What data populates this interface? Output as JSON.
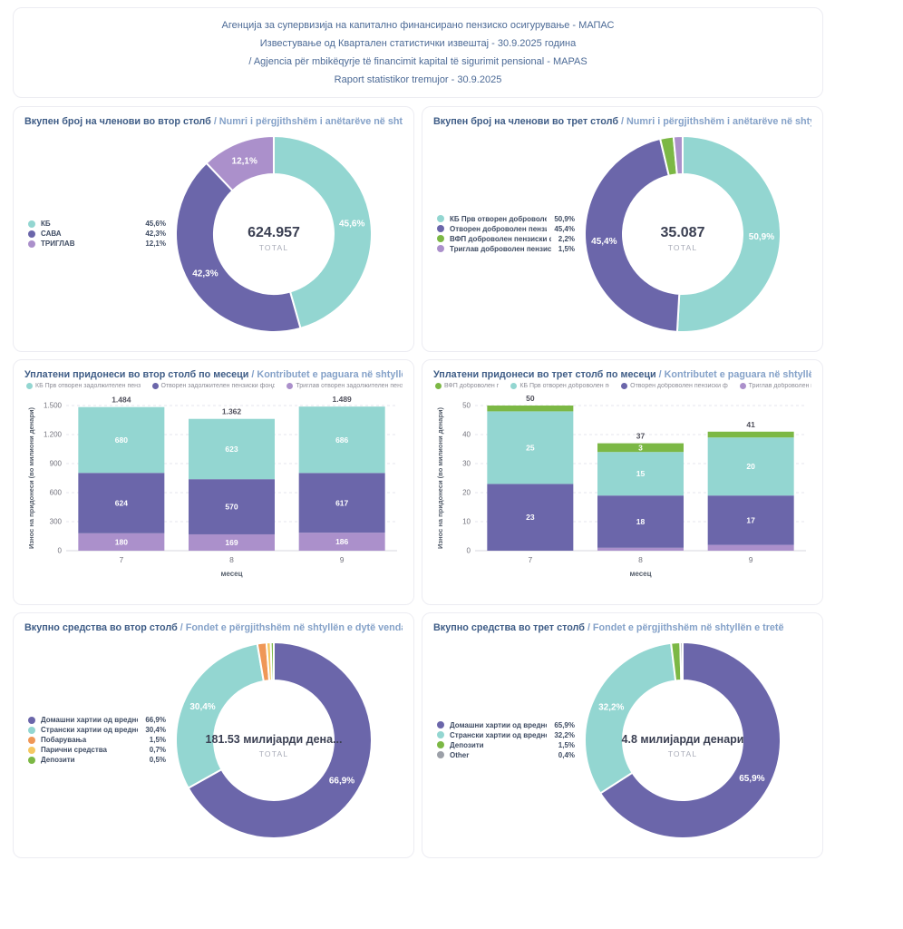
{
  "header": {
    "lines": [
      "Агенција за супервизија на капитално финансирано пензиско осигурување - МАПАС",
      "Известување од Квартален статистички извештај - 30.9.2025 година",
      "/ Agjencia për mbikëqyrje të financimit kapital të sigurimit pensional - MAPAS",
      "Raport statistikor tremujor - 30.9.2025"
    ]
  },
  "colors": {
    "teal": "#93D6D1",
    "purple": "#6B66AA",
    "light_purple": "#AB90CB",
    "green": "#7CB845",
    "orange": "#EF9757",
    "yellow": "#F5C862",
    "gray": "#9CA0A8"
  },
  "chart_data": [
    {
      "id": "members-pillar2",
      "type": "donut",
      "title_mk": "Вкупен број на членови во втор столб",
      "title_sq": "/ Numri i përgjithshëm i anëtarëve në shtyllën e dytë",
      "total": "624.957",
      "total_label": "TOTAL",
      "slices": [
        {
          "name": "КБ",
          "value": 45.6,
          "pct": "45,6%",
          "color": "teal",
          "ring_label": "45,6%"
        },
        {
          "name": "САВА",
          "value": 42.3,
          "pct": "42,3%",
          "color": "purple",
          "ring_label": "42,3%"
        },
        {
          "name": "ТРИГЛАВ",
          "value": 12.1,
          "pct": "12,1%",
          "color": "light_purple",
          "ring_label": "12,1%"
        }
      ]
    },
    {
      "id": "members-pillar3",
      "type": "donut",
      "title_mk": "Вкупен број на членови во трет столб",
      "title_sq": "/ Numri i përgjithshëm i anëtarëve në shtyllën e tretë",
      "total": "35.087",
      "total_label": "TOTAL",
      "slices": [
        {
          "name": "КБ Прв отворен доброволен п",
          "value": 50.9,
          "pct": "50,9%",
          "color": "teal",
          "ring_label": "50,9%"
        },
        {
          "name": "Отворен доброволен пензиск",
          "value": 45.4,
          "pct": "45,4%",
          "color": "purple",
          "ring_label": "45,4%"
        },
        {
          "name": "ВФП доброволен пензиски фо",
          "value": 2.2,
          "pct": "2,2%",
          "color": "green",
          "ring_label": null
        },
        {
          "name": "Триглав доброволен пензиски",
          "value": 1.5,
          "pct": "1,5%",
          "color": "light_purple",
          "ring_label": null
        }
      ]
    },
    {
      "id": "contributions-pillar2",
      "type": "stacked_bar",
      "title_mk": "Уплатени придонеси во втор столб по месеци",
      "title_sq": "/ Kontributet e paguara në shtyllën e dytë sipas muajve",
      "legend": [
        {
          "name": "КБ Прв отворен задолжителен пензиски фо",
          "color": "teal"
        },
        {
          "name": "Отворен задолжителен пензиски фонд Сава пе",
          "color": "purple"
        },
        {
          "name": "Триглав отворен задолжителен пензиски фо",
          "color": "light_purple"
        }
      ],
      "xlabel": "месец",
      "ylabel": "Износ на придонеси (во милиони денари)",
      "categories": [
        "7",
        "8",
        "9"
      ],
      "ymax": 1500,
      "yticks": [
        {
          "v": 0,
          "label": "0"
        },
        {
          "v": 300,
          "label": "300"
        },
        {
          "v": 600,
          "label": "600"
        },
        {
          "v": 900,
          "label": "900"
        },
        {
          "v": 1200,
          "label": "1.200"
        },
        {
          "v": 1500,
          "label": "1.500"
        }
      ],
      "series": [
        {
          "name": "Триглав отворен задолжителен пензиски фо",
          "color": "light_purple",
          "values": [
            180,
            169,
            186
          ],
          "labels": [
            "180",
            "169",
            "186"
          ]
        },
        {
          "name": "Отворен задолжителен пензиски фонд Сава пе",
          "color": "purple",
          "values": [
            624,
            570,
            617
          ],
          "labels": [
            "624",
            "570",
            "617"
          ]
        },
        {
          "name": "КБ Прв отворен задолжителен пензиски фо",
          "color": "teal",
          "values": [
            680,
            623,
            686
          ],
          "labels": [
            "680",
            "623",
            "686"
          ]
        }
      ],
      "totals": [
        "1.484",
        "1.362",
        "1.489"
      ]
    },
    {
      "id": "contributions-pillar3",
      "type": "stacked_bar",
      "title_mk": "Уплатени придонеси во трет столб по месеци",
      "title_sq": "/ Kontributet e paguara në shtyllën e tretë sipas muajve",
      "legend": [
        {
          "name": "ВФП доброволен пензи",
          "color": "green"
        },
        {
          "name": "КБ Прв отворен доброволен пензиски",
          "color": "teal"
        },
        {
          "name": "Отворен доброволен пензиски фонд Сав",
          "color": "purple"
        },
        {
          "name": "Триглав доброволен пензи",
          "color": "light_purple"
        }
      ],
      "xlabel": "месец",
      "ylabel": "Износ на придонеси (во милиони денари)",
      "categories": [
        "7",
        "8",
        "9"
      ],
      "ymax": 50,
      "yticks": [
        {
          "v": 0,
          "label": "0"
        },
        {
          "v": 10,
          "label": "10"
        },
        {
          "v": 20,
          "label": "20"
        },
        {
          "v": 30,
          "label": "30"
        },
        {
          "v": 40,
          "label": "40"
        },
        {
          "v": 50,
          "label": "50"
        }
      ],
      "series": [
        {
          "name": "Триглав доброволен пензи",
          "color": "light_purple",
          "values": [
            0,
            1,
            2
          ],
          "labels": [
            null,
            null,
            null
          ]
        },
        {
          "name": "Отворен доброволен пензиски фонд Сав",
          "color": "purple",
          "values": [
            23,
            18,
            17
          ],
          "labels": [
            "23",
            "18",
            "17"
          ]
        },
        {
          "name": "КБ Прв отворен доброволен пензиски",
          "color": "teal",
          "values": [
            25,
            15,
            20
          ],
          "labels": [
            "25",
            "15",
            "20"
          ]
        },
        {
          "name": "ВФП доброволен пензи",
          "color": "green",
          "values": [
            2,
            3,
            2
          ],
          "labels": [
            null,
            "3",
            null
          ]
        }
      ],
      "totals": [
        "50",
        "37",
        "41"
      ]
    },
    {
      "id": "assets-pillar2",
      "type": "donut",
      "title_mk": "Вкупно средства во втор столб",
      "title_sq": "/ Fondet e përgjithshëm në shtyllën e dytë vendase",
      "total": "181.53  милијарди дена...",
      "total_label": "TOTAL",
      "slices": [
        {
          "name": "Домашни хартии од вредност",
          "value": 66.9,
          "pct": "66,9%",
          "color": "purple",
          "ring_label": "66,9%"
        },
        {
          "name": "Странски хартии од вредност",
          "value": 30.4,
          "pct": "30,4%",
          "color": "teal",
          "ring_label": "30,4%"
        },
        {
          "name": "Побарувања",
          "value": 1.5,
          "pct": "1,5%",
          "color": "orange",
          "ring_label": null
        },
        {
          "name": "Парични средства",
          "value": 0.7,
          "pct": "0,7%",
          "color": "yellow",
          "ring_label": null
        },
        {
          "name": "Депозити",
          "value": 0.5,
          "pct": "0,5%",
          "color": "green",
          "ring_label": null
        }
      ]
    },
    {
      "id": "assets-pillar3",
      "type": "donut",
      "title_mk": "Вкупно средства во трет столб",
      "title_sq": "/ Fondet e përgjithshëm në shtyllën e tretë",
      "total": "4.8 милијарди денари",
      "total_label": "TOTAL",
      "slices": [
        {
          "name": "Домашни хартии од вредност",
          "value": 65.9,
          "pct": "65,9%",
          "color": "purple",
          "ring_label": "65,9%"
        },
        {
          "name": "Странски хартии од вредност",
          "value": 32.2,
          "pct": "32,2%",
          "color": "teal",
          "ring_label": "32,2%"
        },
        {
          "name": "Депозити",
          "value": 1.5,
          "pct": "1,5%",
          "color": "green",
          "ring_label": null
        },
        {
          "name": "Other",
          "value": 0.4,
          "pct": "0,4%",
          "color": "gray",
          "ring_label": null
        }
      ]
    }
  ]
}
